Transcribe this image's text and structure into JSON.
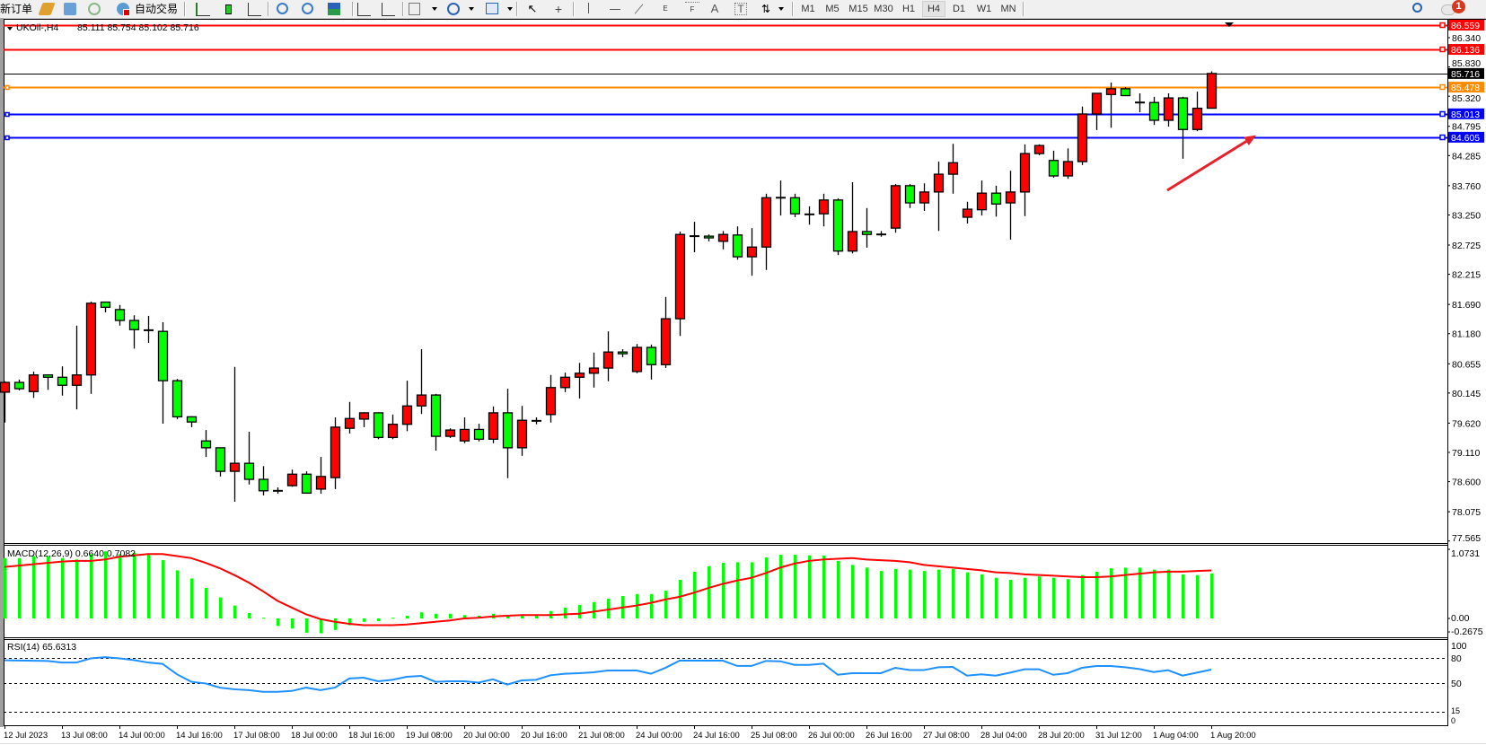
{
  "toolbar": {
    "new_order": "新订单",
    "auto_trading": "自动交易",
    "icons": [
      "market-watch-icon",
      "data-window-icon",
      "signals-icon",
      "auto-trading-icon",
      "bar-chart-icon",
      "candlestick-icon",
      "line-chart-icon",
      "zoom-in-icon",
      "zoom-out-icon",
      "tile-windows-icon",
      "auto-scroll-icon",
      "chart-shift-icon",
      "new-chart-icon",
      "periods-icon",
      "templates-icon",
      "cursor-icon",
      "crosshair-icon",
      "vertical-line-icon",
      "horizontal-line-icon",
      "trendline-icon",
      "equidistant-channel-icon",
      "fibonacci-icon",
      "text-icon",
      "text-label-icon",
      "arrows-icon",
      "search-icon",
      "notification-icon"
    ],
    "channel_label": "E",
    "fib_label": "F",
    "text_label": "A",
    "label_label": "T",
    "timeframes": [
      "M1",
      "M5",
      "M15",
      "M30",
      "H1",
      "H4",
      "D1",
      "W1",
      "MN"
    ],
    "active_timeframe": "H4",
    "notification_count": "1"
  },
  "chart": {
    "symbol": "UKOil-,H4",
    "ohlc": "85.111 85.754 85.102 85.716",
    "macd_label": "MACD(12,26,9) 0.6640 0.7082",
    "rsi_label": "RSI(14) 65.6313"
  },
  "chart_data": {
    "type": "candlestick",
    "symbol": "UKOil-",
    "timeframe": "H4",
    "colors": {
      "bull": "#ff0000",
      "bear": "#00ff00",
      "outline": "#000000"
    },
    "price_axis_ticks": [
      "86.340",
      "85.830",
      "85.320",
      "84.795",
      "84.285",
      "83.760",
      "83.250",
      "82.725",
      "82.215",
      "81.690",
      "81.180",
      "80.655",
      "80.145",
      "79.620",
      "79.110",
      "78.600",
      "78.075",
      "77.565"
    ],
    "ylim": [
      77.565,
      86.559
    ],
    "time_labels": [
      "12 Jul 2023",
      "13 Jul 08:00",
      "14 Jul 00:00",
      "14 Jul 16:00",
      "17 Jul 08:00",
      "18 Jul 00:00",
      "18 Jul 16:00",
      "19 Jul 08:00",
      "20 Jul 00:00",
      "20 Jul 16:00",
      "21 Jul 08:00",
      "24 Jul 00:00",
      "24 Jul 16:00",
      "25 Jul 08:00",
      "26 Jul 00:00",
      "26 Jul 16:00",
      "27 Jul 08:00",
      "28 Jul 04:00",
      "28 Jul 20:00",
      "31 Jul 12:00",
      "1 Aug 04:00",
      "1 Aug 20:00"
    ],
    "ohlc_columns": [
      "open",
      "high",
      "low",
      "close"
    ],
    "candles": [
      [
        80.16,
        80.35,
        79.63,
        80.33
      ],
      [
        80.33,
        80.38,
        80.19,
        80.22
      ],
      [
        80.17,
        80.52,
        80.06,
        80.46
      ],
      [
        80.46,
        80.47,
        80.2,
        80.42
      ],
      [
        80.42,
        80.61,
        80.1,
        80.28
      ],
      [
        80.28,
        81.32,
        79.86,
        80.46
      ],
      [
        80.46,
        81.74,
        80.13,
        81.71
      ],
      [
        81.73,
        81.74,
        81.55,
        81.64
      ],
      [
        81.6,
        81.68,
        81.32,
        81.41
      ],
      [
        81.41,
        81.5,
        80.92,
        81.25
      ],
      [
        81.24,
        81.49,
        81.02,
        81.24
      ],
      [
        81.22,
        81.38,
        79.61,
        80.36
      ],
      [
        80.36,
        80.39,
        79.69,
        79.73
      ],
      [
        79.73,
        79.74,
        79.55,
        79.64
      ],
      [
        79.31,
        79.5,
        79.03,
        79.19
      ],
      [
        79.19,
        79.19,
        78.69,
        78.78
      ],
      [
        78.78,
        80.6,
        78.25,
        78.92
      ],
      [
        78.92,
        79.47,
        78.55,
        78.64
      ],
      [
        78.64,
        78.87,
        78.36,
        78.44
      ],
      [
        78.44,
        78.5,
        78.39,
        78.44
      ],
      [
        78.53,
        78.81,
        78.51,
        78.73
      ],
      [
        78.73,
        78.78,
        78.39,
        78.4
      ],
      [
        78.47,
        79.03,
        78.39,
        78.69
      ],
      [
        78.67,
        79.72,
        78.47,
        79.55
      ],
      [
        79.53,
        79.99,
        79.44,
        79.7
      ],
      [
        79.69,
        79.81,
        79.55,
        79.8
      ],
      [
        79.8,
        79.81,
        79.34,
        79.37
      ],
      [
        79.37,
        79.77,
        79.34,
        79.6
      ],
      [
        79.6,
        80.36,
        79.48,
        79.92
      ],
      [
        79.92,
        80.91,
        79.78,
        80.11
      ],
      [
        80.11,
        80.13,
        79.14,
        79.39
      ],
      [
        79.39,
        79.53,
        79.36,
        79.5
      ],
      [
        79.31,
        79.72,
        79.27,
        79.51
      ],
      [
        79.51,
        79.61,
        79.3,
        79.34
      ],
      [
        79.34,
        79.91,
        79.27,
        79.8
      ],
      [
        79.8,
        80.22,
        78.66,
        79.19
      ],
      [
        79.19,
        79.92,
        79.05,
        79.67
      ],
      [
        79.66,
        79.72,
        79.6,
        79.66
      ],
      [
        79.77,
        80.46,
        79.63,
        80.24
      ],
      [
        80.24,
        80.5,
        80.16,
        80.42
      ],
      [
        80.42,
        80.67,
        80.05,
        80.49
      ],
      [
        80.49,
        80.85,
        80.24,
        80.58
      ],
      [
        80.58,
        81.22,
        80.35,
        80.86
      ],
      [
        80.86,
        80.91,
        80.77,
        80.83
      ],
      [
        80.52,
        81.0,
        80.49,
        80.94
      ],
      [
        80.94,
        80.99,
        80.38,
        80.64
      ],
      [
        80.64,
        81.82,
        80.58,
        81.44
      ],
      [
        81.44,
        82.96,
        81.14,
        82.91
      ],
      [
        82.88,
        83.13,
        82.6,
        82.88
      ],
      [
        82.88,
        82.91,
        82.79,
        82.85
      ],
      [
        82.79,
        82.97,
        82.65,
        82.91
      ],
      [
        82.9,
        83.05,
        82.47,
        82.52
      ],
      [
        82.52,
        83.02,
        82.19,
        82.69
      ],
      [
        82.69,
        83.62,
        82.29,
        83.55
      ],
      [
        83.55,
        83.85,
        83.24,
        83.55
      ],
      [
        83.55,
        83.62,
        83.21,
        83.27
      ],
      [
        83.26,
        83.4,
        83.08,
        83.26
      ],
      [
        83.27,
        83.62,
        83.05,
        83.51
      ],
      [
        83.51,
        83.54,
        82.55,
        82.62
      ],
      [
        82.62,
        83.82,
        82.58,
        82.96
      ],
      [
        82.96,
        83.37,
        82.68,
        82.91
      ],
      [
        82.91,
        82.97,
        82.87,
        82.91
      ],
      [
        83.02,
        83.79,
        82.94,
        83.76
      ],
      [
        83.76,
        83.79,
        83.37,
        83.46
      ],
      [
        83.46,
        83.8,
        83.32,
        83.65
      ],
      [
        83.65,
        84.18,
        82.97,
        83.96
      ],
      [
        83.96,
        84.49,
        83.62,
        84.16
      ],
      [
        83.21,
        83.48,
        83.1,
        83.35
      ],
      [
        83.34,
        83.85,
        83.24,
        83.63
      ],
      [
        83.63,
        83.76,
        83.22,
        83.44
      ],
      [
        83.46,
        84.02,
        82.82,
        83.65
      ],
      [
        83.65,
        84.48,
        83.23,
        84.32
      ],
      [
        84.32,
        84.48,
        84.29,
        84.46
      ],
      [
        84.2,
        84.37,
        83.9,
        83.93
      ],
      [
        83.93,
        84.41,
        83.88,
        84.18
      ],
      [
        84.18,
        85.14,
        84.12,
        85.01
      ],
      [
        85.01,
        85.37,
        84.73,
        85.37
      ],
      [
        85.35,
        85.56,
        84.77,
        85.45
      ],
      [
        85.45,
        85.48,
        85.33,
        85.33
      ],
      [
        85.21,
        85.37,
        85.04,
        85.21
      ],
      [
        85.21,
        85.31,
        84.82,
        84.9
      ],
      [
        84.9,
        85.37,
        84.79,
        85.29
      ],
      [
        85.29,
        85.31,
        84.23,
        84.74
      ],
      [
        84.74,
        85.4,
        84.71,
        85.11
      ],
      [
        85.111,
        85.754,
        85.102,
        85.716
      ]
    ],
    "horizontal_lines": [
      {
        "price": "86.559",
        "color": "#ff0000"
      },
      {
        "price": "86.136",
        "color": "#ff0000"
      },
      {
        "price": "85.716",
        "color": "#000000"
      },
      {
        "price": "85.478",
        "color": "#ff8c00"
      },
      {
        "price": "85.013",
        "color": "#0000ff"
      },
      {
        "price": "84.605",
        "color": "#0000ff"
      }
    ],
    "annotation_arrow": {
      "color": "#e8202a",
      "from_price": 83.68,
      "to_price": 84.64,
      "from_bar": 81,
      "to_bar": 87
    },
    "macd": {
      "params": "12,26,9",
      "axis_ticks": [
        "1.0731",
        "0.00",
        "-0.2675"
      ],
      "ylim": [
        -0.2675,
        1.0731
      ],
      "histogram_color": "#00ff00",
      "signal_color": "#ff0000",
      "histogram": [
        0.89,
        0.89,
        0.92,
        0.92,
        0.89,
        0.87,
        0.95,
        0.99,
        0.95,
        0.97,
        0.94,
        0.86,
        0.71,
        0.59,
        0.45,
        0.31,
        0.19,
        0.08,
        0.01,
        -0.11,
        -0.15,
        -0.21,
        -0.22,
        -0.17,
        -0.1,
        -0.05,
        -0.04,
        0.01,
        0.04,
        0.09,
        0.07,
        0.07,
        0.05,
        0.04,
        0.07,
        0.03,
        0.04,
        0.04,
        0.11,
        0.16,
        0.2,
        0.24,
        0.29,
        0.33,
        0.36,
        0.36,
        0.41,
        0.57,
        0.69,
        0.77,
        0.82,
        0.83,
        0.83,
        0.9,
        0.94,
        0.94,
        0.93,
        0.93,
        0.85,
        0.79,
        0.75,
        0.7,
        0.73,
        0.72,
        0.7,
        0.72,
        0.73,
        0.68,
        0.65,
        0.6,
        0.57,
        0.6,
        0.62,
        0.6,
        0.58,
        0.64,
        0.69,
        0.74,
        0.75,
        0.75,
        0.72,
        0.72,
        0.65,
        0.64,
        0.664
      ],
      "signal": [
        0.76,
        0.78,
        0.8,
        0.82,
        0.84,
        0.85,
        0.85,
        0.87,
        0.91,
        0.93,
        0.95,
        0.95,
        0.92,
        0.89,
        0.82,
        0.74,
        0.64,
        0.53,
        0.4,
        0.26,
        0.16,
        0.06,
        -0.01,
        -0.05,
        -0.08,
        -0.1,
        -0.1,
        -0.1,
        -0.09,
        -0.07,
        -0.05,
        -0.03,
        0.0,
        0.01,
        0.03,
        0.04,
        0.05,
        0.05,
        0.05,
        0.06,
        0.07,
        0.1,
        0.13,
        0.16,
        0.19,
        0.23,
        0.28,
        0.32,
        0.38,
        0.45,
        0.51,
        0.56,
        0.6,
        0.67,
        0.75,
        0.81,
        0.85,
        0.87,
        0.88,
        0.89,
        0.87,
        0.86,
        0.85,
        0.83,
        0.79,
        0.77,
        0.75,
        0.73,
        0.71,
        0.68,
        0.67,
        0.65,
        0.64,
        0.63,
        0.62,
        0.61,
        0.61,
        0.62,
        0.64,
        0.66,
        0.68,
        0.69,
        0.69,
        0.7,
        0.7082
      ]
    },
    "rsi": {
      "period": 14,
      "axis_ticks": [
        "100",
        "80",
        "50",
        "15",
        "0"
      ],
      "levels": [
        80,
        50,
        15
      ],
      "ylim": [
        0,
        100
      ],
      "color": "#1e90ff",
      "values": [
        76.7,
        76.5,
        76.2,
        76,
        74,
        74,
        79,
        80.5,
        79,
        77,
        74,
        72.5,
        60,
        51,
        49,
        44,
        42,
        41,
        39,
        39,
        40,
        44,
        41,
        44,
        55,
        55.9,
        51.6,
        53.4,
        57,
        58,
        51,
        51.6,
        51.6,
        50,
        54,
        47.7,
        52.7,
        53.4,
        58.8,
        60.6,
        61.3,
        62.4,
        64.5,
        64.5,
        64.5,
        60.6,
        67.7,
        76.3,
        76.3,
        76.3,
        76.3,
        70,
        70,
        76,
        75.6,
        71.3,
        71.3,
        72.7,
        59.4,
        61.3,
        61.3,
        61.3,
        67.7,
        65,
        65,
        68.4,
        68.8,
        58.4,
        59.9,
        58.4,
        62,
        66,
        66,
        59.4,
        61.3,
        67.7,
        69.9,
        69.9,
        68.4,
        66.3,
        62.7,
        64.9,
        58.4,
        62,
        65.6313
      ]
    }
  }
}
